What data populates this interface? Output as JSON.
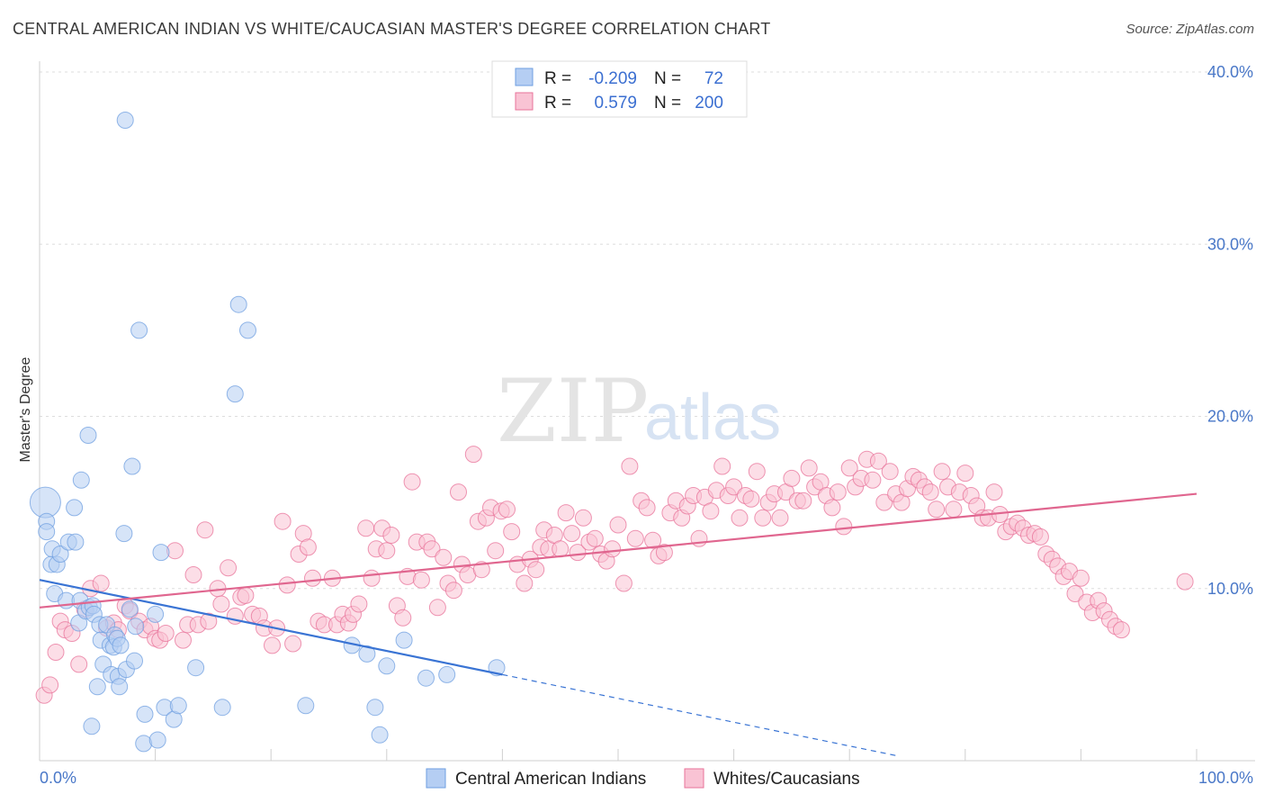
{
  "header": {
    "title": "CENTRAL AMERICAN INDIAN VS WHITE/CAUCASIAN MASTER'S DEGREE CORRELATION CHART",
    "source": "Source: ZipAtlas.com"
  },
  "watermark": {
    "zip": "ZIP",
    "atlas": "atlas"
  },
  "legend": {
    "r_label": "R =",
    "n_label": "N =",
    "rows": [
      {
        "r": "-0.209",
        "n": "72",
        "color": "#a9c8f5"
      },
      {
        "r": "0.579",
        "n": "200",
        "color": "#f7b9cc"
      }
    ]
  },
  "chart_data": {
    "type": "scatter",
    "title": "CENTRAL AMERICAN INDIAN VS WHITE/CAUCASIAN MASTER'S DEGREE CORRELATION CHART",
    "xlabel": "",
    "ylabel": "Master's Degree",
    "xlim": [
      0,
      100
    ],
    "ylim": [
      0,
      40
    ],
    "x_tick_labels": [
      "0.0%",
      "100.0%"
    ],
    "y_ticks": [
      10,
      20,
      30,
      40
    ],
    "y_tick_labels": [
      "10.0%",
      "20.0%",
      "30.0%",
      "40.0%"
    ],
    "grid": true,
    "legend_position": "top-center",
    "series": [
      {
        "name": "Central American Indians",
        "color": "#6f9fe0",
        "fill": "#b5cef3",
        "trend": {
          "x0": 0,
          "y0": 10.5,
          "x1": 40,
          "y1": 5.0,
          "dashed_to_x": 74,
          "dashed_to_y": 0.3
        },
        "points": [
          [
            0.5,
            15.0,
            "L"
          ],
          [
            0.6,
            13.9
          ],
          [
            0.6,
            13.3
          ],
          [
            1.0,
            11.4
          ],
          [
            1.1,
            12.3
          ],
          [
            1.3,
            9.7
          ],
          [
            1.5,
            11.4
          ],
          [
            1.8,
            12.0
          ],
          [
            2.3,
            9.3
          ],
          [
            2.5,
            12.7
          ],
          [
            3.0,
            14.7
          ],
          [
            3.1,
            12.7
          ],
          [
            3.4,
            8.0
          ],
          [
            3.5,
            9.3
          ],
          [
            3.6,
            16.3
          ],
          [
            4.0,
            8.7
          ],
          [
            4.3,
            8.9
          ],
          [
            4.2,
            18.9
          ],
          [
            4.5,
            2.0
          ],
          [
            4.6,
            9.0
          ],
          [
            4.7,
            8.5
          ],
          [
            5.0,
            4.3
          ],
          [
            5.2,
            7.9
          ],
          [
            5.3,
            7.0
          ],
          [
            5.5,
            5.6
          ],
          [
            5.8,
            7.9
          ],
          [
            6.1,
            6.7
          ],
          [
            6.2,
            5.0
          ],
          [
            6.5,
            7.3
          ],
          [
            6.4,
            6.6
          ],
          [
            6.8,
            4.9
          ],
          [
            6.7,
            7.1
          ],
          [
            7.0,
            6.7
          ],
          [
            6.9,
            4.3
          ],
          [
            7.3,
            13.2
          ],
          [
            7.4,
            37.2
          ],
          [
            7.5,
            5.3
          ],
          [
            7.8,
            8.8
          ],
          [
            8.0,
            17.1
          ],
          [
            8.2,
            5.8
          ],
          [
            8.3,
            7.8
          ],
          [
            8.6,
            25.0
          ],
          [
            9.0,
            1.0
          ],
          [
            9.1,
            2.7
          ],
          [
            10.0,
            8.5
          ],
          [
            10.2,
            1.2
          ],
          [
            10.5,
            12.1
          ],
          [
            10.8,
            3.1
          ],
          [
            11.6,
            2.4
          ],
          [
            12.0,
            3.2
          ],
          [
            13.5,
            5.4
          ],
          [
            15.8,
            3.1
          ],
          [
            16.9,
            21.3
          ],
          [
            17.2,
            26.5
          ],
          [
            18.0,
            25.0
          ],
          [
            23.0,
            3.2
          ],
          [
            27.0,
            6.7
          ],
          [
            28.3,
            6.2
          ],
          [
            29.0,
            3.1
          ],
          [
            29.4,
            1.5
          ],
          [
            30.0,
            5.5
          ],
          [
            31.5,
            7.0
          ],
          [
            33.4,
            4.8
          ],
          [
            35.2,
            5.0
          ],
          [
            39.5,
            5.4
          ]
        ]
      },
      {
        "name": "Whites/Caucasians",
        "color": "#e8739a",
        "fill": "#f9c3d4",
        "trend": {
          "x0": 0,
          "y0": 8.9,
          "x1": 100,
          "y1": 15.5
        },
        "points": [
          [
            0.4,
            3.8
          ],
          [
            0.9,
            4.4
          ],
          [
            1.4,
            6.3
          ],
          [
            1.8,
            8.1
          ],
          [
            2.2,
            7.6
          ],
          [
            2.8,
            7.4
          ],
          [
            3.4,
            5.6
          ],
          [
            3.9,
            8.8
          ],
          [
            4.4,
            10.0
          ],
          [
            5.3,
            10.3
          ],
          [
            5.8,
            7.7
          ],
          [
            6.4,
            8.0
          ],
          [
            6.8,
            7.6
          ],
          [
            7.4,
            9.0
          ],
          [
            7.8,
            8.7
          ],
          [
            8.6,
            8.1
          ],
          [
            9.1,
            7.6
          ],
          [
            9.6,
            7.8
          ],
          [
            10.0,
            7.1
          ],
          [
            10.4,
            7.0
          ],
          [
            10.9,
            7.4
          ],
          [
            11.7,
            12.2
          ],
          [
            12.4,
            7.0
          ],
          [
            12.8,
            7.9
          ],
          [
            13.3,
            10.8
          ],
          [
            13.7,
            7.9
          ],
          [
            14.3,
            13.4
          ],
          [
            14.6,
            8.1
          ],
          [
            15.4,
            10.0
          ],
          [
            15.7,
            9.1
          ],
          [
            16.3,
            11.2
          ],
          [
            16.9,
            8.4
          ],
          [
            17.4,
            9.5
          ],
          [
            17.8,
            9.6
          ],
          [
            18.4,
            8.5
          ],
          [
            19.0,
            8.4
          ],
          [
            19.4,
            7.7
          ],
          [
            20.1,
            6.7
          ],
          [
            20.5,
            7.7
          ],
          [
            21.0,
            13.9
          ],
          [
            21.4,
            10.2
          ],
          [
            21.9,
            6.8
          ],
          [
            22.4,
            12.0
          ],
          [
            22.8,
            13.2
          ],
          [
            23.2,
            12.4
          ],
          [
            23.6,
            10.6
          ],
          [
            24.1,
            8.1
          ],
          [
            24.6,
            7.9
          ],
          [
            25.3,
            10.6
          ],
          [
            25.7,
            7.9
          ],
          [
            26.2,
            8.5
          ],
          [
            26.7,
            8.0
          ],
          [
            27.1,
            8.5
          ],
          [
            27.6,
            9.1
          ],
          [
            28.2,
            13.5
          ],
          [
            28.7,
            10.6
          ],
          [
            29.1,
            12.3
          ],
          [
            29.6,
            13.5
          ],
          [
            30.0,
            12.2
          ],
          [
            30.4,
            13.1
          ],
          [
            30.9,
            9.0
          ],
          [
            31.4,
            8.3
          ],
          [
            31.8,
            10.7
          ],
          [
            32.2,
            16.2
          ],
          [
            32.6,
            12.7
          ],
          [
            33.0,
            10.5
          ],
          [
            33.5,
            12.7
          ],
          [
            33.9,
            12.3
          ],
          [
            34.4,
            8.9
          ],
          [
            34.9,
            11.8
          ],
          [
            35.3,
            10.3
          ],
          [
            35.8,
            9.9
          ],
          [
            36.2,
            15.6
          ],
          [
            36.5,
            11.4
          ],
          [
            37.0,
            10.8
          ],
          [
            37.5,
            17.8
          ],
          [
            37.9,
            13.9
          ],
          [
            38.2,
            11.1
          ],
          [
            38.6,
            14.1
          ],
          [
            39.0,
            14.7
          ],
          [
            39.4,
            12.2
          ],
          [
            39.9,
            14.5
          ],
          [
            40.4,
            14.6
          ],
          [
            40.8,
            13.3
          ],
          [
            41.3,
            11.4
          ],
          [
            41.9,
            10.3
          ],
          [
            42.4,
            11.7
          ],
          [
            42.9,
            11.1
          ],
          [
            43.3,
            12.4
          ],
          [
            43.6,
            13.4
          ],
          [
            44.0,
            12.3
          ],
          [
            44.5,
            13.1
          ],
          [
            45.0,
            12.3
          ],
          [
            45.5,
            14.4
          ],
          [
            46.0,
            13.2
          ],
          [
            46.5,
            12.1
          ],
          [
            47.0,
            14.1
          ],
          [
            47.5,
            12.7
          ],
          [
            48.0,
            12.9
          ],
          [
            48.5,
            12.0
          ],
          [
            49.0,
            11.6
          ],
          [
            49.5,
            12.3
          ],
          [
            50.0,
            13.7
          ],
          [
            50.5,
            10.3
          ],
          [
            51.0,
            17.1
          ],
          [
            51.5,
            12.9
          ],
          [
            52.0,
            15.1
          ],
          [
            52.5,
            14.7
          ],
          [
            53.0,
            12.8
          ],
          [
            53.5,
            11.9
          ],
          [
            54.0,
            12.1
          ],
          [
            54.5,
            14.4
          ],
          [
            55.0,
            15.1
          ],
          [
            55.5,
            14.1
          ],
          [
            56.0,
            14.8
          ],
          [
            56.5,
            15.4
          ],
          [
            57.0,
            12.9
          ],
          [
            57.5,
            15.3
          ],
          [
            58.0,
            14.5
          ],
          [
            58.5,
            15.7
          ],
          [
            59.0,
            17.1
          ],
          [
            59.5,
            15.4
          ],
          [
            60.0,
            15.9
          ],
          [
            60.5,
            14.1
          ],
          [
            61.0,
            15.4
          ],
          [
            61.5,
            15.2
          ],
          [
            62.0,
            16.8
          ],
          [
            62.5,
            14.1
          ],
          [
            63.0,
            15.0
          ],
          [
            63.5,
            15.5
          ],
          [
            64.0,
            14.1
          ],
          [
            64.5,
            15.6
          ],
          [
            65.0,
            16.4
          ],
          [
            65.5,
            15.1
          ],
          [
            66.0,
            15.1
          ],
          [
            66.5,
            17.0
          ],
          [
            67.0,
            15.9
          ],
          [
            67.5,
            16.2
          ],
          [
            68.0,
            15.4
          ],
          [
            68.5,
            14.7
          ],
          [
            69.0,
            15.6
          ],
          [
            69.5,
            13.6
          ],
          [
            70.0,
            17.0
          ],
          [
            70.5,
            15.9
          ],
          [
            71.0,
            16.4
          ],
          [
            71.5,
            17.5
          ],
          [
            72.0,
            16.3
          ],
          [
            72.5,
            17.4
          ],
          [
            73.0,
            15.0
          ],
          [
            73.5,
            16.8
          ],
          [
            74.0,
            15.5
          ],
          [
            74.5,
            15.0
          ],
          [
            75.0,
            15.8
          ],
          [
            75.5,
            16.5
          ],
          [
            76.0,
            16.3
          ],
          [
            76.5,
            15.9
          ],
          [
            77.0,
            15.6
          ],
          [
            77.5,
            14.6
          ],
          [
            78.0,
            16.8
          ],
          [
            78.5,
            15.9
          ],
          [
            79.0,
            14.6
          ],
          [
            79.5,
            15.6
          ],
          [
            80.0,
            16.7
          ],
          [
            80.5,
            15.4
          ],
          [
            81.0,
            14.8
          ],
          [
            81.5,
            14.1
          ],
          [
            82.0,
            14.1
          ],
          [
            82.5,
            15.6
          ],
          [
            83.0,
            14.3
          ],
          [
            83.5,
            13.3
          ],
          [
            84.0,
            13.6
          ],
          [
            84.5,
            13.8
          ],
          [
            85.0,
            13.5
          ],
          [
            85.5,
            13.1
          ],
          [
            86.0,
            13.2
          ],
          [
            86.5,
            13.0
          ],
          [
            87.0,
            12.0
          ],
          [
            87.5,
            11.7
          ],
          [
            88.0,
            11.3
          ],
          [
            88.5,
            10.7
          ],
          [
            89.0,
            11.0
          ],
          [
            89.5,
            9.7
          ],
          [
            90.0,
            10.6
          ],
          [
            90.5,
            9.2
          ],
          [
            91.0,
            8.6
          ],
          [
            91.5,
            9.3
          ],
          [
            92.0,
            8.7
          ],
          [
            92.5,
            8.2
          ],
          [
            93.0,
            7.8
          ],
          [
            93.5,
            7.6
          ],
          [
            99.0,
            10.4
          ]
        ]
      }
    ]
  }
}
